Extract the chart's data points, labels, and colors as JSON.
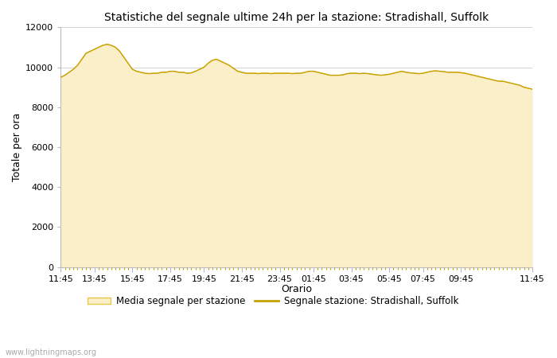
{
  "title": "Statistiche del segnale ultime 24h per la stazione: Stradishall, Suffolk",
  "xlabel": "Orario",
  "ylabel": "Totale per ora",
  "x_labels": [
    "11:45",
    "13:45",
    "15:45",
    "17:45",
    "19:45",
    "21:45",
    "23:45",
    "01:45",
    "03:45",
    "05:45",
    "07:45",
    "09:45",
    "11:45"
  ],
  "ylim": [
    0,
    12000
  ],
  "yticks": [
    0,
    2000,
    4000,
    6000,
    8000,
    10000,
    12000
  ],
  "fill_color": "#FAEFC8",
  "fill_edge_color": "#E8C84A",
  "line_color": "#C8A000",
  "background_color": "#FFFFFF",
  "grid_color": "#CCCCCC",
  "legend_fill_label": "Media segnale per stazione",
  "legend_line_label": "Segnale stazione: Stradishall, Suffolk",
  "watermark": "www.lightningmaps.org",
  "area_values": [
    9500,
    9600,
    9750,
    9900,
    10100,
    10400,
    10700,
    10800,
    10900,
    11000,
    11100,
    11150,
    11100,
    11000,
    10800,
    10500,
    10200,
    9900,
    9800,
    9750,
    9700,
    9680,
    9700,
    9700,
    9750,
    9750,
    9800,
    9800,
    9750,
    9750,
    9700,
    9720,
    9800,
    9900,
    10000,
    10200,
    10350,
    10400,
    10300,
    10200,
    10100,
    9950,
    9800,
    9750,
    9700,
    9700,
    9700,
    9680,
    9700,
    9700,
    9680,
    9700,
    9700,
    9700,
    9700,
    9680,
    9700,
    9700,
    9750,
    9800,
    9800,
    9750,
    9700,
    9650,
    9600,
    9600,
    9600,
    9620,
    9680,
    9700,
    9700,
    9680,
    9700,
    9680,
    9650,
    9620,
    9600,
    9620,
    9650,
    9700,
    9750,
    9800,
    9750,
    9720,
    9700,
    9680,
    9700,
    9750,
    9800,
    9820,
    9800,
    9780,
    9750,
    9750,
    9750,
    9730,
    9700,
    9650,
    9600,
    9550,
    9500,
    9450,
    9400,
    9350,
    9300,
    9300,
    9250,
    9200,
    9150,
    9100,
    9000,
    8950,
    8900
  ],
  "n_points": 113,
  "tick_indices": [
    0,
    8,
    17,
    26,
    34,
    43,
    52,
    60,
    69,
    78,
    86,
    95,
    112
  ]
}
